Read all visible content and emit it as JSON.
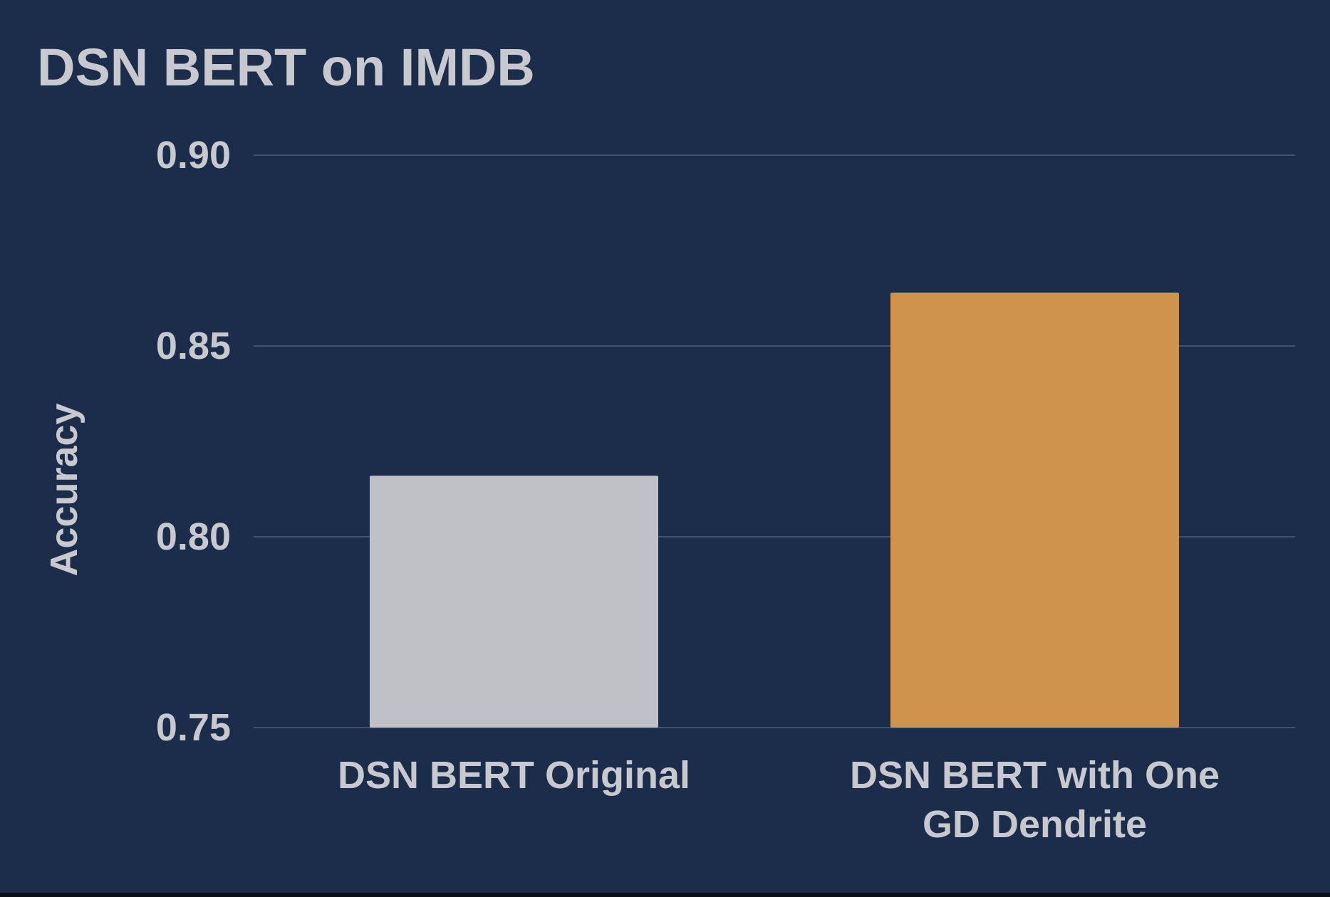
{
  "chart_data": {
    "type": "bar",
    "title": "DSN BERT on IMDB",
    "xlabel": "",
    "ylabel": "Accuracy",
    "categories": [
      [
        "DSN BERT Original"
      ],
      [
        "DSN BERT with One",
        "GD Dendrite"
      ]
    ],
    "values": [
      0.816,
      0.864
    ],
    "bar_colors": [
      "#c0c1c6",
      "#cf934d"
    ],
    "ylim": [
      0.75,
      0.9
    ],
    "yticks": [
      0.75,
      0.8,
      0.85,
      0.9
    ],
    "ytick_labels": [
      "0.75",
      "0.80",
      "0.85",
      "0.90"
    ],
    "grid": true,
    "legend": "none"
  },
  "colors": {
    "background": "#1c2d4b",
    "text": "#c7c9ce",
    "gridline": "#3d5274"
  }
}
